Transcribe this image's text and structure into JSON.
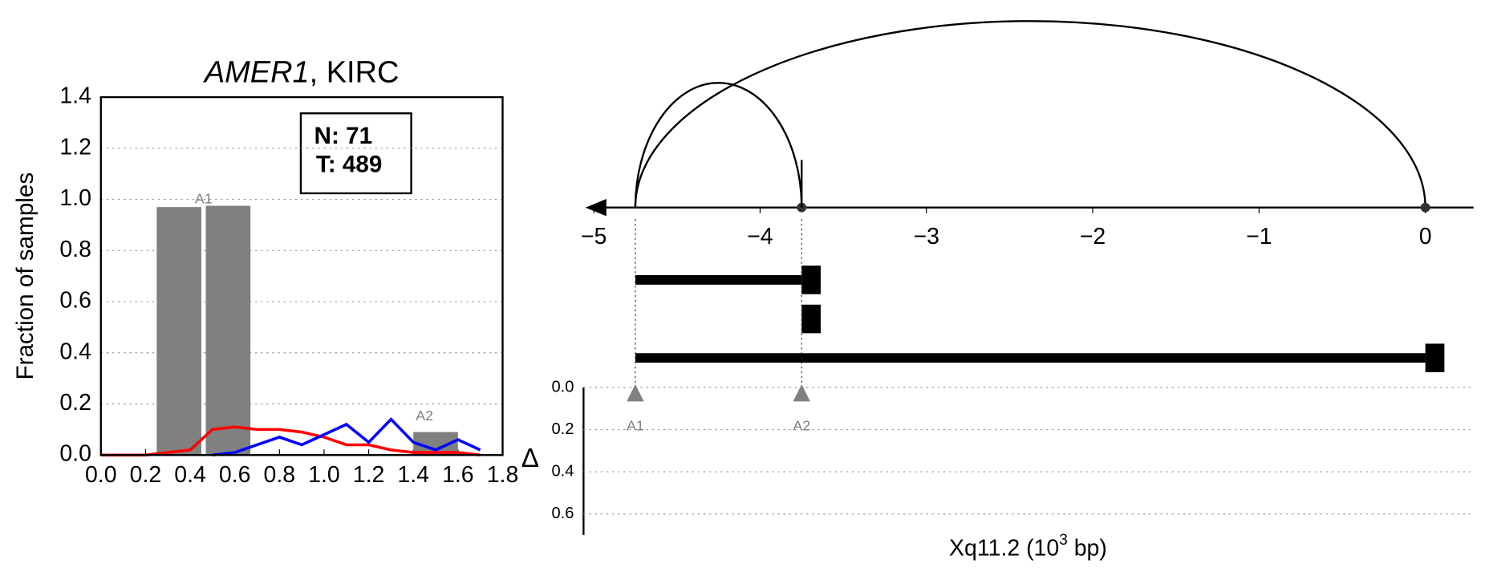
{
  "chart_data": [
    {
      "type": "line",
      "title_gene": "AMER1",
      "title_rest": ", KIRC",
      "y_label": "Fraction of samples",
      "xlim": [
        0,
        1.8
      ],
      "ylim": [
        0,
        1.4
      ],
      "xticks": [
        {
          "value": 0,
          "label": "0.0"
        },
        {
          "value": 0.2,
          "label": "0.2"
        },
        {
          "value": 0.4,
          "label": "0.4"
        },
        {
          "value": 0.6,
          "label": "0.6"
        },
        {
          "value": 0.8,
          "label": "0.8"
        },
        {
          "value": 1,
          "label": "1.0"
        },
        {
          "value": 1.2,
          "label": "1.2"
        },
        {
          "value": 1.4,
          "label": "1.4"
        },
        {
          "value": 1.6,
          "label": "1.6"
        },
        {
          "value": 1.8,
          "label": "1.8"
        }
      ],
      "yticks": [
        {
          "value": 0,
          "label": "0.0"
        },
        {
          "value": 0.2,
          "label": "0.2"
        },
        {
          "value": 0.4,
          "label": "0.4"
        },
        {
          "value": 0.6,
          "label": "0.6"
        },
        {
          "value": 0.8,
          "label": "0.8"
        },
        {
          "value": 1,
          "label": "1.0"
        },
        {
          "value": 1.2,
          "label": "1.2"
        },
        {
          "value": 1.4,
          "label": "1.4"
        }
      ],
      "grid": true,
      "bars": {
        "color": "#808080",
        "x0": [
          0.25,
          0.47,
          1.4
        ],
        "x1": [
          0.45,
          0.67,
          1.6
        ],
        "values": [
          0.97,
          0.975,
          0.09
        ]
      },
      "annotations": [
        {
          "text": "A1",
          "x": 0.46,
          "y": 1.0
        },
        {
          "text": "A2",
          "x": 1.45,
          "y": 0.15
        }
      ],
      "series": [
        {
          "color": "#ff0000",
          "x": [
            0,
            0.2,
            0.3,
            0.4,
            0.5,
            0.6,
            0.7,
            0.8,
            0.9,
            1.0,
            1.1,
            1.2,
            1.3,
            1.4,
            1.5,
            1.6,
            1.7
          ],
          "values": [
            0,
            0,
            0.01,
            0.02,
            0.1,
            0.11,
            0.1,
            0.1,
            0.09,
            0.07,
            0.04,
            0.04,
            0.02,
            0.01,
            0.01,
            0.01,
            0
          ]
        },
        {
          "color": "#0000ff",
          "x": [
            0.5,
            0.6,
            0.7,
            0.8,
            0.9,
            1.0,
            1.1,
            1.2,
            1.3,
            1.4,
            1.5,
            1.6,
            1.7
          ],
          "values": [
            0,
            0.01,
            0.04,
            0.07,
            0.04,
            0.08,
            0.12,
            0.05,
            0.14,
            0.05,
            0.02,
            0.06,
            0.02
          ]
        }
      ],
      "legend": [
        "N: 71",
        "T: 489"
      ]
    },
    {
      "type": "gene_structure",
      "xlim": [
        -5.05,
        0.29
      ],
      "xticks": [
        {
          "value": -5,
          "label": "−5"
        },
        {
          "value": -4,
          "label": "−4"
        },
        {
          "value": -3,
          "label": "−3"
        },
        {
          "value": -2,
          "label": "−2"
        },
        {
          "value": -1,
          "label": "−1"
        },
        0
      ],
      "junctions": [
        {
          "start": -4.75,
          "end": -3.75
        },
        {
          "start": -4.75,
          "end": 0
        }
      ],
      "transcripts": [
        {
          "start": -4.75,
          "end": -3.75
        },
        {
          "start": -3.75,
          "end": -3.75
        },
        {
          "start": -4.75,
          "end": 0
        }
      ],
      "delta_label": "Δ",
      "ylim": [
        0,
        0.7
      ],
      "yticks": [
        {
          "value": 0,
          "label": "0.0"
        },
        {
          "value": 0.2,
          "label": "0.2"
        },
        {
          "value": 0.4,
          "label": "0.4"
        },
        {
          "value": 0.6,
          "label": "0.6"
        }
      ],
      "sites": [
        {
          "label": "A1",
          "x": -4.75,
          "delta": 0.03
        },
        {
          "label": "A2",
          "x": -3.75,
          "delta": 0.03
        }
      ],
      "x_label_main": "Xq11.2 (10",
      "x_label_sup": "3",
      "x_label_end": " bp)"
    }
  ]
}
